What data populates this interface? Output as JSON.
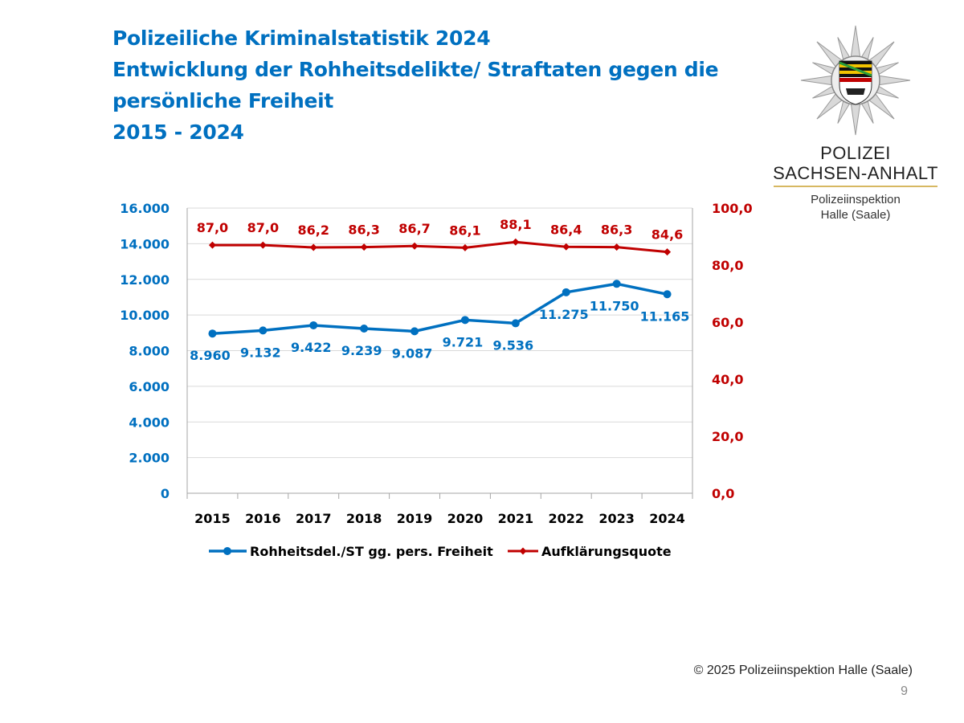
{
  "header": {
    "title_lines": [
      "Polizeiliche Kriminalstatistik 2024",
      "Entwicklung der Rohheitsdelikte/ Straftaten gegen die",
      "persönliche Freiheit",
      "2015 - 2024"
    ]
  },
  "logo": {
    "icon": "police-star-badge-icon",
    "org_line1": "POLIZEI",
    "org_line2": "SACHSEN-ANHALT",
    "sub_line1": "Polizeiinspektion",
    "sub_line2": "Halle (Saale)"
  },
  "chart_data": {
    "type": "line",
    "categories": [
      "2015",
      "2016",
      "2017",
      "2018",
      "2019",
      "2020",
      "2021",
      "2022",
      "2023",
      "2024"
    ],
    "series": [
      {
        "name": "Rohheitsdel./ST gg. pers. Freiheit",
        "axis": "left",
        "color": "#0070c0",
        "marker": "circle",
        "values": [
          8960,
          9132,
          9422,
          9239,
          9087,
          9721,
          9536,
          11275,
          11750,
          11165
        ],
        "labels": [
          "8.960",
          "9.132",
          "9.422",
          "9.239",
          "9.087",
          "9.721",
          "9.536",
          "11.275",
          "11.750",
          "11.165"
        ]
      },
      {
        "name": "Aufklärungsquote",
        "axis": "right",
        "color": "#c00000",
        "marker": "diamond",
        "values": [
          87.0,
          87.0,
          86.2,
          86.3,
          86.7,
          86.1,
          88.1,
          86.4,
          86.3,
          84.6
        ],
        "labels": [
          "87,0",
          "87,0",
          "86,2",
          "86,3",
          "86,7",
          "86,1",
          "88,1",
          "86,4",
          "86,3",
          "84,6"
        ]
      }
    ],
    "y_left": {
      "ylim": [
        0,
        16000
      ],
      "ticks": [
        "0",
        "2.000",
        "4.000",
        "6.000",
        "8.000",
        "10.000",
        "12.000",
        "14.000",
        "16.000"
      ],
      "color": "#0070c0"
    },
    "y_right": {
      "ylim": [
        0,
        100
      ],
      "ticks": [
        "0,0",
        "20,0",
        "40,0",
        "60,0",
        "80,0",
        "100,0"
      ],
      "color": "#c00000"
    },
    "grid": true,
    "legend_position": "bottom"
  },
  "footer": {
    "copyright": "© 2025 Polizeiinspektion Halle (Saale)",
    "page_number": "9"
  }
}
